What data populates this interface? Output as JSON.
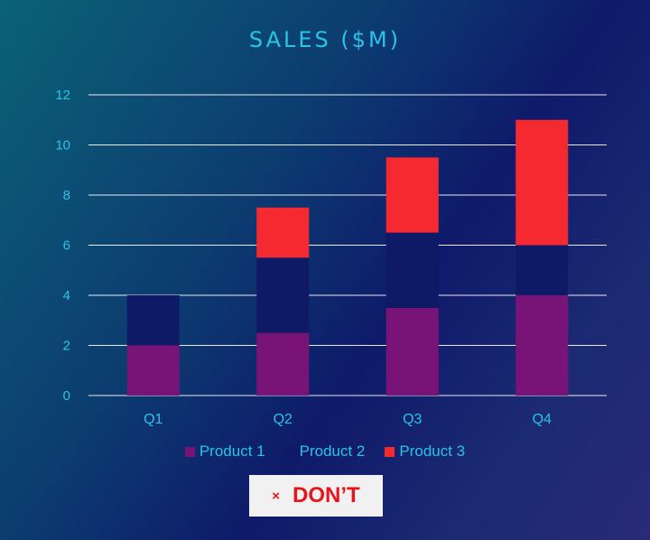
{
  "chart_data": {
    "type": "bar",
    "stacked": true,
    "title": "SALES ($M)",
    "xlabel": "",
    "ylabel": "",
    "categories": [
      "Q1",
      "Q2",
      "Q3",
      "Q4"
    ],
    "series": [
      {
        "name": "Product 1",
        "values": [
          2,
          2.5,
          3.5,
          4
        ],
        "color": "#781478"
      },
      {
        "name": "Product 2",
        "values": [
          2,
          3,
          3,
          2
        ],
        "color": "#0f1a66"
      },
      {
        "name": "Product 3",
        "values": [
          0,
          2,
          3,
          5
        ],
        "color": "#f52a30"
      }
    ],
    "ylim": [
      0,
      12
    ],
    "yticks": [
      0,
      2,
      4,
      6,
      8,
      10,
      12
    ],
    "grid": true,
    "legend": "bottom"
  },
  "badge": {
    "icon": "×",
    "text": "DON’T",
    "color": "#e8141c"
  },
  "colors": {
    "text": "#29c4e6",
    "gridline": "#ffffff"
  }
}
